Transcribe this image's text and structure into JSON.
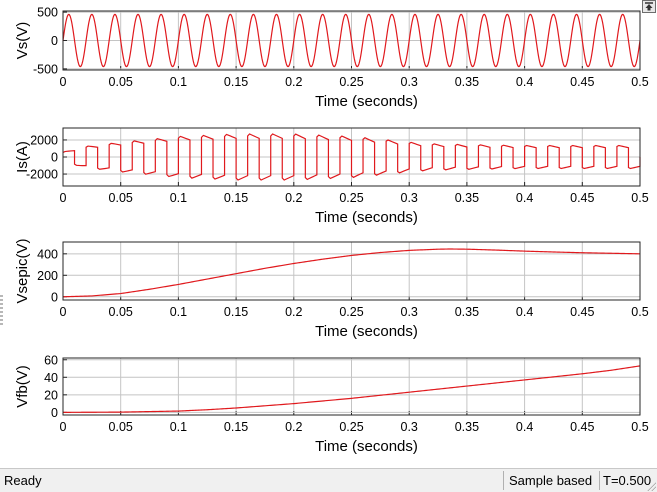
{
  "window": {
    "restore_icon": "restore-axes-icon"
  },
  "statusbar": {
    "status": "Ready",
    "sample_mode": "Sample based",
    "time": "T=0.500"
  },
  "colors": {
    "trace": "#e0191d",
    "grid": "#c4c4c4",
    "axes": "#262626",
    "background": "#ffffff"
  },
  "chart_data": [
    {
      "type": "line",
      "ylabel": "Vs(V)",
      "xlabel": "Time (seconds)",
      "xlim": [
        0,
        0.5
      ],
      "ylim": [
        -520,
        520
      ],
      "x_ticks": [
        "0",
        "0.05",
        "0.1",
        "0.15",
        "0.2",
        "0.25",
        "0.3",
        "0.35",
        "0.4",
        "0.45",
        "0.5"
      ],
      "y_ticks": [
        {
          "value": 500,
          "label": "500"
        },
        {
          "value": 0,
          "label": "0"
        },
        {
          "value": -500,
          "label": "-500"
        }
      ],
      "grid": true,
      "series": [
        {
          "kind": "sine",
          "amplitude": 460,
          "frequency_hz": 50,
          "phase": 0
        }
      ]
    },
    {
      "type": "line",
      "ylabel": "Is(A)",
      "xlabel": "Time (seconds)",
      "xlim": [
        0,
        0.5
      ],
      "ylim": [
        -3400,
        3400
      ],
      "x_ticks": [
        "0",
        "0.05",
        "0.1",
        "0.15",
        "0.2",
        "0.25",
        "0.3",
        "0.35",
        "0.4",
        "0.45",
        "0.5"
      ],
      "y_ticks": [
        {
          "value": 2000,
          "label": "2000"
        },
        {
          "value": 0,
          "label": "0"
        },
        {
          "value": -2000,
          "label": "-2000"
        }
      ],
      "grid": true,
      "series": [
        {
          "kind": "square-wave",
          "frequency_hz": 50,
          "envelope": {
            "t": [
              0,
              0.02,
              0.05,
              0.08,
              0.1,
              0.15,
              0.2,
              0.25,
              0.28,
              0.3,
              0.32,
              0.35,
              0.4,
              0.45,
              0.5
            ],
            "amplitude": [
              600,
              1300,
              1800,
              2200,
              2500,
              2800,
              2800,
              2500,
              2100,
              1800,
              1600,
              1500,
              1400,
              1400,
              1400
            ]
          }
        }
      ]
    },
    {
      "type": "line",
      "ylabel": "Vsepic(V)",
      "xlabel": "Time (seconds)",
      "xlim": [
        0,
        0.5
      ],
      "ylim": [
        -30,
        510
      ],
      "x_ticks": [
        "0",
        "0.05",
        "0.1",
        "0.15",
        "0.2",
        "0.25",
        "0.3",
        "0.35",
        "0.4",
        "0.45",
        "0.5"
      ],
      "y_ticks": [
        {
          "value": 400,
          "label": "400"
        },
        {
          "value": 200,
          "label": "200"
        },
        {
          "value": 0,
          "label": "0"
        }
      ],
      "grid": true,
      "series": [
        {
          "x": [
            0,
            0.025,
            0.05,
            0.075,
            0.1,
            0.125,
            0.15,
            0.175,
            0.2,
            0.225,
            0.25,
            0.275,
            0.3,
            0.325,
            0.335,
            0.35,
            0.375,
            0.4,
            0.425,
            0.45,
            0.475,
            0.5
          ],
          "y": [
            0,
            8,
            30,
            70,
            115,
            165,
            215,
            265,
            310,
            350,
            385,
            412,
            432,
            443,
            445,
            443,
            435,
            425,
            417,
            410,
            405,
            400
          ]
        }
      ]
    },
    {
      "type": "line",
      "ylabel": "Vfb(V)",
      "xlabel": "Time (seconds)",
      "xlim": [
        0,
        0.5
      ],
      "ylim": [
        -3,
        62
      ],
      "x_ticks": [
        "0",
        "0.05",
        "0.1",
        "0.15",
        "0.2",
        "0.25",
        "0.3",
        "0.35",
        "0.4",
        "0.45",
        "0.5"
      ],
      "y_ticks": [
        {
          "value": 60,
          "label": "60"
        },
        {
          "value": 40,
          "label": "40"
        },
        {
          "value": 20,
          "label": "20"
        },
        {
          "value": 0,
          "label": "0"
        }
      ],
      "grid": true,
      "series": [
        {
          "x": [
            0,
            0.05,
            0.1,
            0.125,
            0.15,
            0.175,
            0.2,
            0.225,
            0.25,
            0.275,
            0.3,
            0.325,
            0.35,
            0.375,
            0.4,
            0.425,
            0.45,
            0.475,
            0.5
          ],
          "y": [
            0,
            0.3,
            1.5,
            3,
            5,
            7.5,
            10,
            13,
            16,
            19.5,
            23,
            26.5,
            30,
            33.5,
            37,
            40.5,
            44,
            48,
            53
          ]
        }
      ]
    }
  ]
}
